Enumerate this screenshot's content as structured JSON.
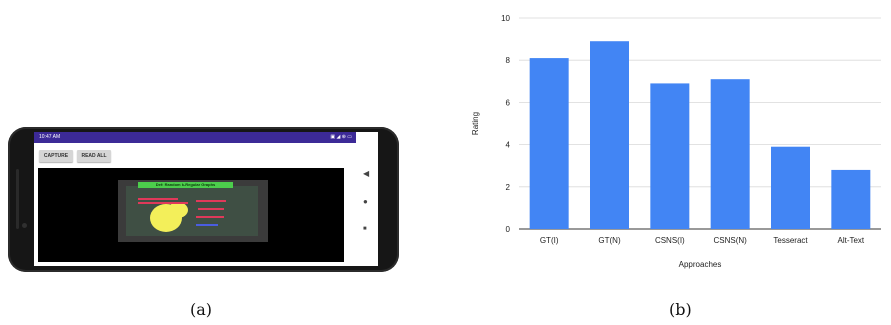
{
  "panel_a": {
    "caption": "(a)",
    "phone": {
      "status_time": "10:47 AM",
      "status_icons": "▣ ◢ ⊛ ▭",
      "capture_label": "CAPTURE",
      "read_all_label": "READ ALL",
      "slide_title": "Def: Random k-Regular Graphs",
      "nav_back_icon": "◀",
      "nav_home_icon": "●",
      "nav_recents_icon": "■"
    }
  },
  "panel_b": {
    "caption": "(b)"
  },
  "chart_data": {
    "type": "bar",
    "categories": [
      "GT(I)",
      "GT(N)",
      "CSNS(I)",
      "CSNS(N)",
      "Tesseract",
      "Alt-Text"
    ],
    "values": [
      8.1,
      8.9,
      6.9,
      7.1,
      3.9,
      2.8
    ],
    "xlabel": "Approaches",
    "ylabel": "Rating",
    "ylim": [
      0,
      10
    ],
    "yticks": [
      0,
      2,
      4,
      6,
      8,
      10
    ],
    "grid": true,
    "bar_color": "#4285f4",
    "grid_color": "#d9d9d9"
  }
}
